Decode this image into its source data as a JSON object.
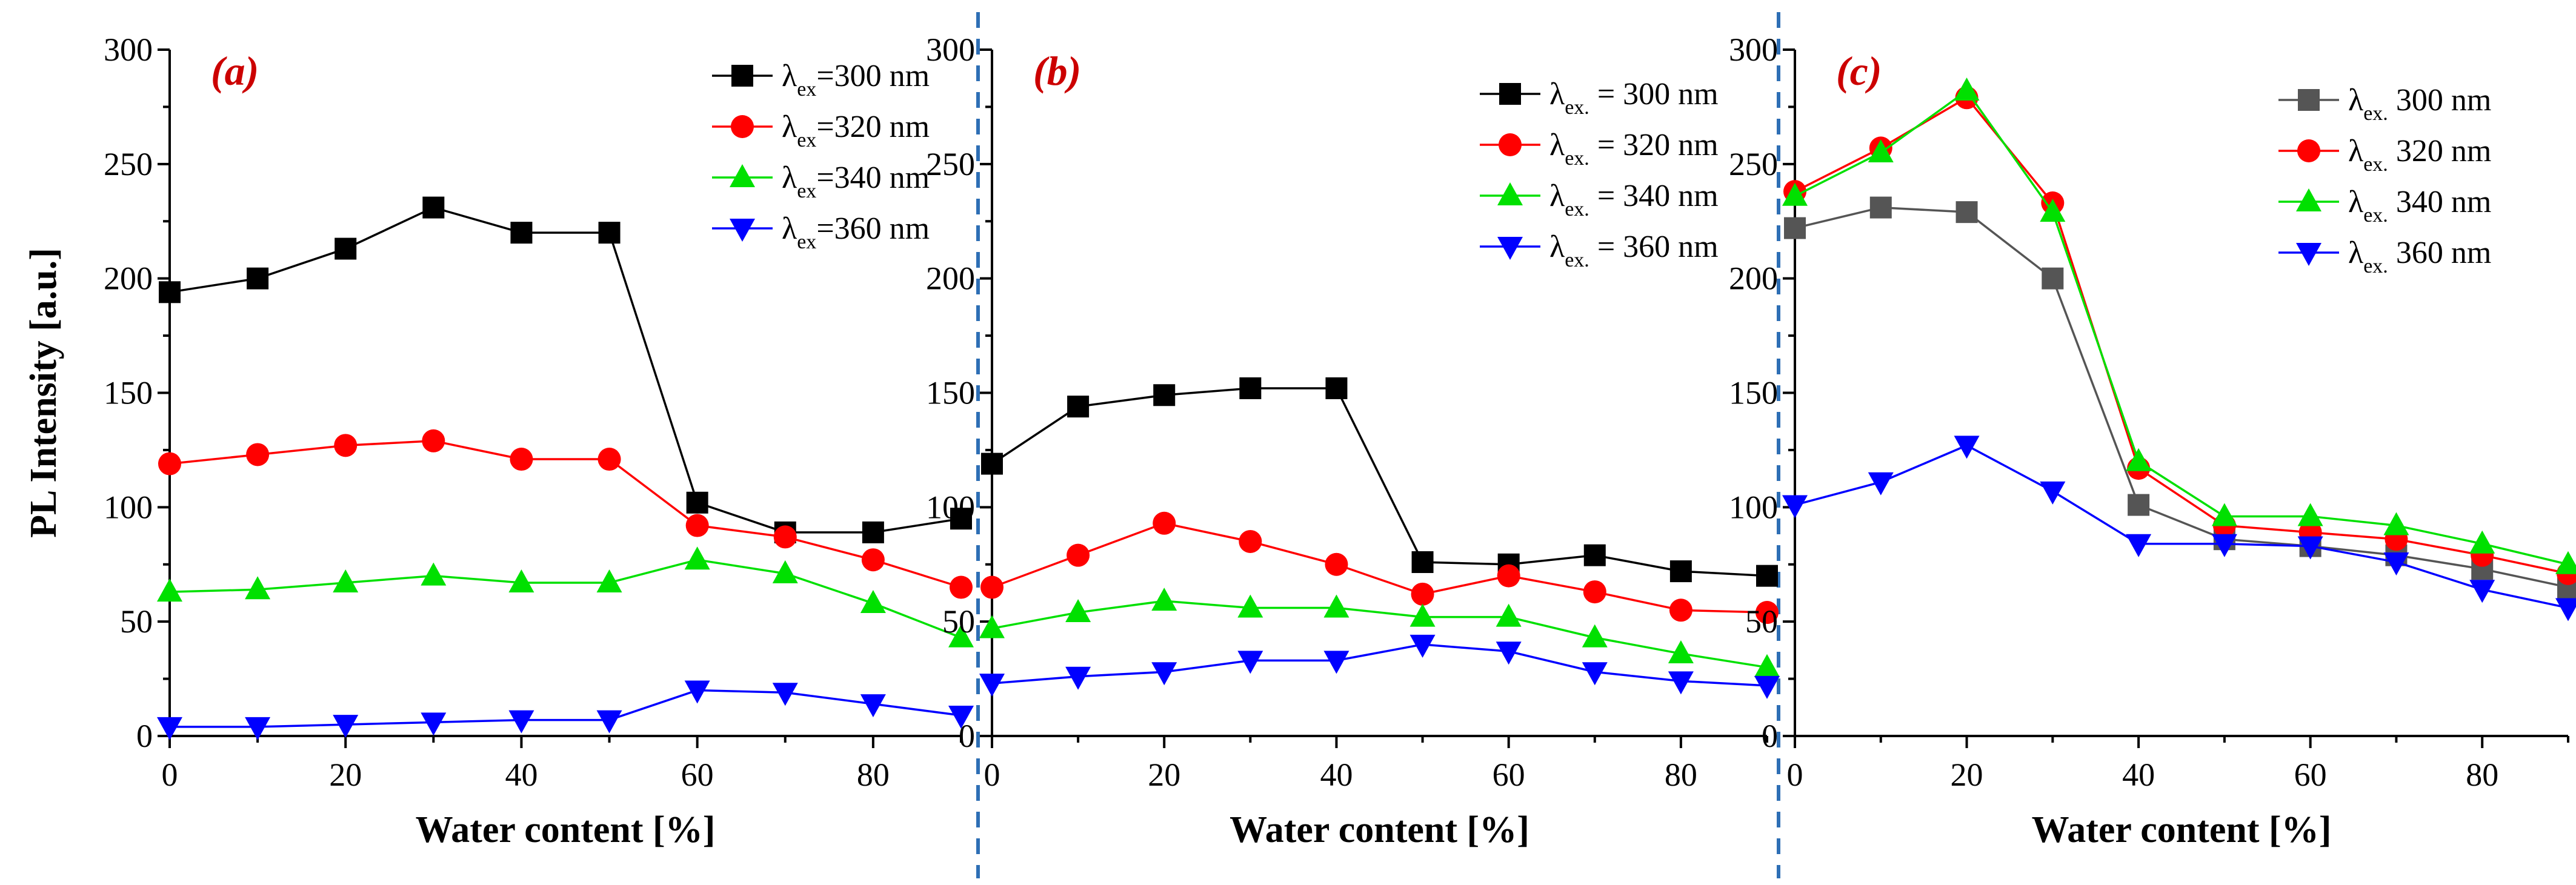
{
  "chart_data": [
    {
      "type": "line",
      "panel_label": "(a)",
      "xlabel": "Water content [%]",
      "ylabel": "PL Intensity [a.u.]",
      "xlim": [
        0,
        90
      ],
      "ylim": [
        0,
        300
      ],
      "xticks": [
        0,
        20,
        40,
        60,
        80
      ],
      "yticks": [
        0,
        50,
        100,
        150,
        200,
        250,
        300
      ],
      "legend_position": "top-right",
      "grid": false,
      "x": [
        0,
        10,
        20,
        30,
        40,
        50,
        60,
        70,
        80,
        90
      ],
      "series": [
        {
          "name": "300 nm",
          "legend_lambda": "λ",
          "legend_sub": "ex",
          "legend_value": "=300 nm",
          "color": "#000000",
          "marker": "square",
          "values": [
            194,
            200,
            213,
            231,
            220,
            220,
            102,
            89,
            89,
            95
          ]
        },
        {
          "name": "320 nm",
          "legend_lambda": "λ",
          "legend_sub": "ex",
          "legend_value": "=320 nm",
          "color": "#ff0000",
          "marker": "circle",
          "values": [
            119,
            123,
            127,
            129,
            121,
            121,
            92,
            87,
            77,
            65
          ]
        },
        {
          "name": "340 nm",
          "legend_lambda": "λ",
          "legend_sub": "ex",
          "legend_value": "=340 nm",
          "color": "#00e000",
          "marker": "triangle-up",
          "values": [
            63,
            64,
            67,
            70,
            67,
            67,
            77,
            71,
            58,
            43
          ]
        },
        {
          "name": "360 nm",
          "legend_lambda": "λ",
          "legend_sub": "ex",
          "legend_value": "=360 nm",
          "color": "#0000ff",
          "marker": "triangle-down",
          "values": [
            4,
            4,
            5,
            6,
            7,
            7,
            20,
            19,
            14,
            9
          ]
        }
      ]
    },
    {
      "type": "line",
      "panel_label": "(b)",
      "xlabel": "Water content [%]",
      "ylabel": "",
      "xlim": [
        0,
        90
      ],
      "ylim": [
        0,
        300
      ],
      "xticks": [
        0,
        20,
        40,
        60,
        80
      ],
      "yticks": [
        0,
        50,
        100,
        150,
        200,
        250,
        300
      ],
      "legend_position": "top-right",
      "grid": false,
      "x": [
        0,
        10,
        20,
        30,
        40,
        50,
        60,
        70,
        80,
        90
      ],
      "series": [
        {
          "name": "300 nm",
          "legend_lambda": "λ",
          "legend_sub": "ex.",
          "legend_value": " = 300 nm",
          "color": "#000000",
          "marker": "square",
          "values": [
            119,
            144,
            149,
            152,
            152,
            76,
            75,
            79,
            72,
            70
          ]
        },
        {
          "name": "320 nm",
          "legend_lambda": "λ",
          "legend_sub": "ex.",
          "legend_value": " = 320 nm",
          "color": "#ff0000",
          "marker": "circle",
          "values": [
            65,
            79,
            93,
            85,
            75,
            62,
            70,
            63,
            55,
            54
          ]
        },
        {
          "name": "340 nm",
          "legend_lambda": "λ",
          "legend_sub": "ex.",
          "legend_value": " = 340 nm",
          "color": "#00e000",
          "marker": "triangle-up",
          "values": [
            47,
            54,
            59,
            56,
            56,
            52,
            52,
            43,
            36,
            30
          ]
        },
        {
          "name": "360 nm",
          "legend_lambda": "λ",
          "legend_sub": "ex.",
          "legend_value": " = 360 nm",
          "color": "#0000ff",
          "marker": "triangle-down",
          "values": [
            23,
            26,
            28,
            33,
            33,
            40,
            37,
            28,
            24,
            22
          ]
        }
      ]
    },
    {
      "type": "line",
      "panel_label": "(c)",
      "xlabel": "Water content [%]",
      "ylabel": "",
      "xlim": [
        0,
        90
      ],
      "ylim": [
        0,
        300
      ],
      "xticks": [
        0,
        20,
        40,
        60,
        80
      ],
      "yticks": [
        0,
        50,
        100,
        150,
        200,
        250,
        300
      ],
      "legend_position": "top-right",
      "grid": false,
      "x": [
        0,
        10,
        20,
        30,
        40,
        50,
        60,
        70,
        80,
        90
      ],
      "series": [
        {
          "name": "300 nm",
          "legend_lambda": "λ",
          "legend_sub": "ex.",
          "legend_value": " 300 nm",
          "color": "#555555",
          "marker": "square",
          "values": [
            222,
            231,
            229,
            200,
            101,
            86,
            83,
            79,
            73,
            65
          ]
        },
        {
          "name": "320 nm",
          "legend_lambda": "λ",
          "legend_sub": "ex.",
          "legend_value": " 320 nm",
          "color": "#ff0000",
          "marker": "circle",
          "values": [
            238,
            257,
            279,
            233,
            117,
            92,
            89,
            86,
            79,
            71
          ]
        },
        {
          "name": "340 nm",
          "legend_lambda": "λ",
          "legend_sub": "ex.",
          "legend_value": " 340 nm",
          "color": "#00e000",
          "marker": "triangle-up",
          "values": [
            236,
            255,
            282,
            229,
            120,
            96,
            96,
            92,
            84,
            75
          ]
        },
        {
          "name": "360 nm",
          "legend_lambda": "λ",
          "legend_sub": "ex.",
          "legend_value": " 360 nm",
          "color": "#0000ff",
          "marker": "triangle-down",
          "values": [
            101,
            111,
            127,
            107,
            84,
            84,
            83,
            76,
            64,
            56
          ]
        }
      ]
    }
  ]
}
